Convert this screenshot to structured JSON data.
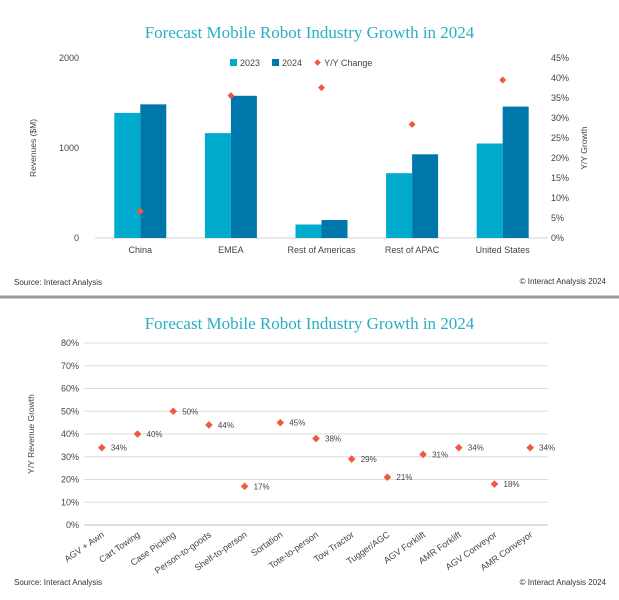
{
  "chart_data": [
    {
      "type": "bar",
      "title": "Forecast Mobile Robot Industry Growth in 2024",
      "categories": [
        "China",
        "EMEA",
        "Rest of Americas",
        "Rest of APAC",
        "United States"
      ],
      "series": [
        {
          "name": "2023",
          "kind": "bar",
          "color": "#00aacc",
          "values": [
            1390,
            1165,
            150,
            720,
            1050
          ]
        },
        {
          "name": "2024",
          "kind": "bar",
          "color": "#0077aa",
          "values": [
            1485,
            1580,
            200,
            930,
            1460
          ]
        },
        {
          "name": "Y/Y Change",
          "kind": "marker",
          "axis": "right",
          "color": "#ef5a3e",
          "values": [
            6.7,
            35.6,
            37.6,
            28.4,
            39.5
          ]
        }
      ],
      "ylabel": "Revenues ($M)",
      "y2label": "Y/Y Growth",
      "ylim": [
        0,
        2000
      ],
      "y_ticks": [
        "0",
        "1000",
        "2000"
      ],
      "y2lim": [
        0,
        45
      ],
      "y2_ticks": [
        "0%",
        "5%",
        "10%",
        "15%",
        "20%",
        "25%",
        "30%",
        "35%",
        "40%",
        "45%"
      ],
      "legend": "top-center",
      "source": "Source: Interact Analysis",
      "copyright": "© Interact Analysis 2024"
    },
    {
      "type": "scatter",
      "title": "Forecast Mobile Robot Industry Growth in 2024",
      "categories": [
        "AGV + Awn",
        "Cart Towing",
        "Case Picking",
        "Person-to-goods",
        "Shelf-to-person",
        "Sortation",
        "Tote-to-person",
        "Tow Tractor",
        "Tugger/AGC",
        "AGV Forklift",
        "AMR Forklift",
        "AGV Conveyor",
        "AMR Conveyor"
      ],
      "series": [
        {
          "name": "",
          "color": "#ef5a3e",
          "values": [
            34,
            40,
            50,
            44,
            17,
            45,
            38,
            29,
            21,
            31,
            34,
            18,
            34
          ]
        }
      ],
      "data_labels": [
        "34%",
        "40%",
        "50%",
        "44%",
        "17%",
        "45%",
        "38%",
        "29%",
        "21%",
        "31%",
        "34%",
        "18%",
        "34%"
      ],
      "ylabel": "Y/Y Revenue Growth",
      "ylim": [
        0,
        80
      ],
      "y_ticks": [
        "0%",
        "10%",
        "20%",
        "30%",
        "40%",
        "50%",
        "60%",
        "70%",
        "80%"
      ],
      "source": "Source: Interact Analysis",
      "copyright": "© Interact Analysis 2024"
    }
  ]
}
